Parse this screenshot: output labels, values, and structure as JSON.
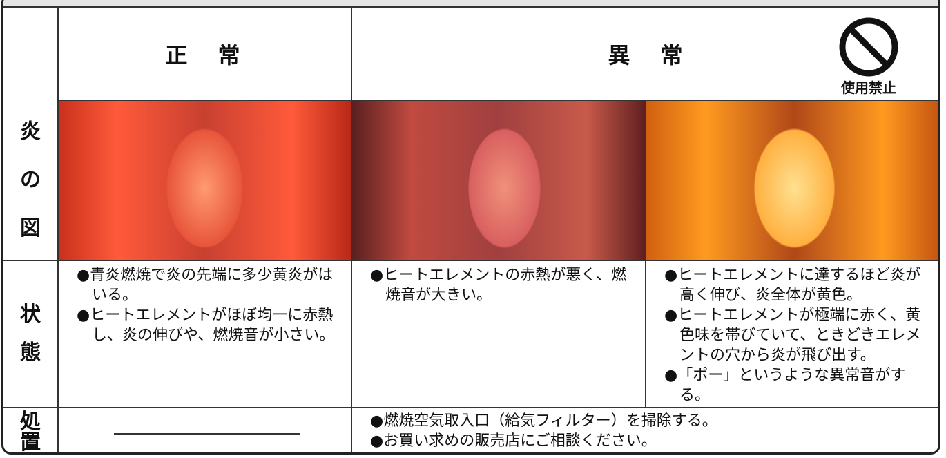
{
  "table": {
    "header": {
      "normal": "正　常",
      "abnormal": "異　常",
      "prohibited": "使用禁止"
    },
    "row_headers": {
      "flame": [
        "炎",
        "の",
        "図"
      ],
      "state": [
        "状",
        "態"
      ],
      "action": [
        "処",
        "置"
      ]
    },
    "state": [
      [
        "●青炎燃焼で炎の先端に多少黄炎がはいる。",
        "●ヒートエレメントがほぼ均一に赤熱し、炎の伸びや、燃焼音が小さい。"
      ],
      [
        "●ヒートエレメントの赤熱が悪く、燃焼音が大きい。"
      ],
      [
        "●ヒートエレメントに達するほど炎が高く伸び、炎全体が黄色。",
        "●ヒートエレメントが極端に赤く、黄色味を帯びていて、ときどきエレメントの穴から炎が飛び出す。",
        "●「ポー」というような異常音がする。"
      ]
    ],
    "action": [
      "●燃焼空気取入口（給気フィルター）を掃除する。",
      "●お買い求めの販売店にご相談ください。"
    ]
  }
}
